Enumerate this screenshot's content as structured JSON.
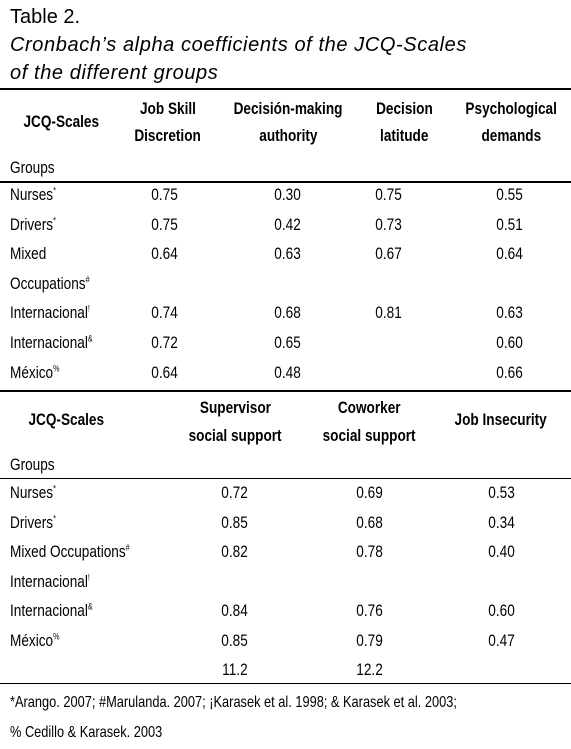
{
  "title": "Table 2.",
  "caption_line1": "Cronbach’s alpha coefficients of the JCQ-Scales",
  "caption_line2": "of the different groups",
  "table1": {
    "scales_label": "JCQ-Scales",
    "groups_label": "Groups",
    "headers": [
      {
        "line1": "Job Skill",
        "line2": "Discretion"
      },
      {
        "line1": "Decisión-making",
        "line2": "authority"
      },
      {
        "line1": "Decision",
        "line2": "latitude"
      },
      {
        "line1": "Psychological",
        "line2": "demands"
      }
    ],
    "rows": [
      {
        "group": "Nurses",
        "mark": "*",
        "values": [
          "0.75",
          "0.30",
          "0.75",
          "0.55"
        ]
      },
      {
        "group": "Drivers",
        "mark": "*",
        "values": [
          "0.75",
          "0.42",
          "0.73",
          "0.51"
        ]
      },
      {
        "group": "Mixed",
        "mark": "",
        "values": [
          "0.64",
          "0.63",
          "0.67",
          "0.64"
        ]
      },
      {
        "group": "Occupations",
        "mark": "#",
        "values": [
          "",
          "",
          "",
          ""
        ]
      },
      {
        "group": "Internacional",
        "mark": "!",
        "values": [
          "0.74",
          "0.68",
          "0.81",
          "0.63"
        ]
      },
      {
        "group": "Internacional",
        "mark": "&",
        "values": [
          "0.72",
          "0.65",
          "",
          "0.60"
        ]
      },
      {
        "group": "México",
        "mark": "%",
        "values": [
          "0.64",
          "0.48",
          "",
          "0.66"
        ]
      }
    ]
  },
  "table2": {
    "scales_label": "JCQ-Scales",
    "groups_label": "Groups",
    "headers": [
      {
        "line1": "Supervisor",
        "line2": "social support"
      },
      {
        "line1": "Coworker",
        "line2": "social support"
      },
      {
        "line1": "Job Insecurity",
        "line2": ""
      }
    ],
    "rows": [
      {
        "group": "Nurses",
        "mark": "*",
        "values": [
          "0.72",
          "0.69",
          "0.53"
        ]
      },
      {
        "group": "Drivers",
        "mark": "*",
        "values": [
          "0.85",
          "0.68",
          "0.34"
        ]
      },
      {
        "group": "Mixed Occupations",
        "mark": "#",
        "values": [
          "0.82",
          "0.78",
          "0.40"
        ]
      },
      {
        "group": "Internacional",
        "mark": "!",
        "values": [
          "",
          "",
          ""
        ]
      },
      {
        "group": "Internacional",
        "mark": "&",
        "values": [
          "0.84",
          "0.76",
          "0.60"
        ]
      },
      {
        "group": "México",
        "mark": "%",
        "values": [
          "0.85",
          "0.79",
          "0.47"
        ]
      },
      {
        "group": "",
        "mark": "",
        "values": [
          "11.2",
          "12.2",
          ""
        ]
      }
    ]
  },
  "footnote_line1": "*Arango. 2007; #Marulanda. 2007; ¡Karasek et al. 1998; & Karasek et al. 2003;",
  "footnote_line2": "% Cedillo & Karasek. 2003"
}
